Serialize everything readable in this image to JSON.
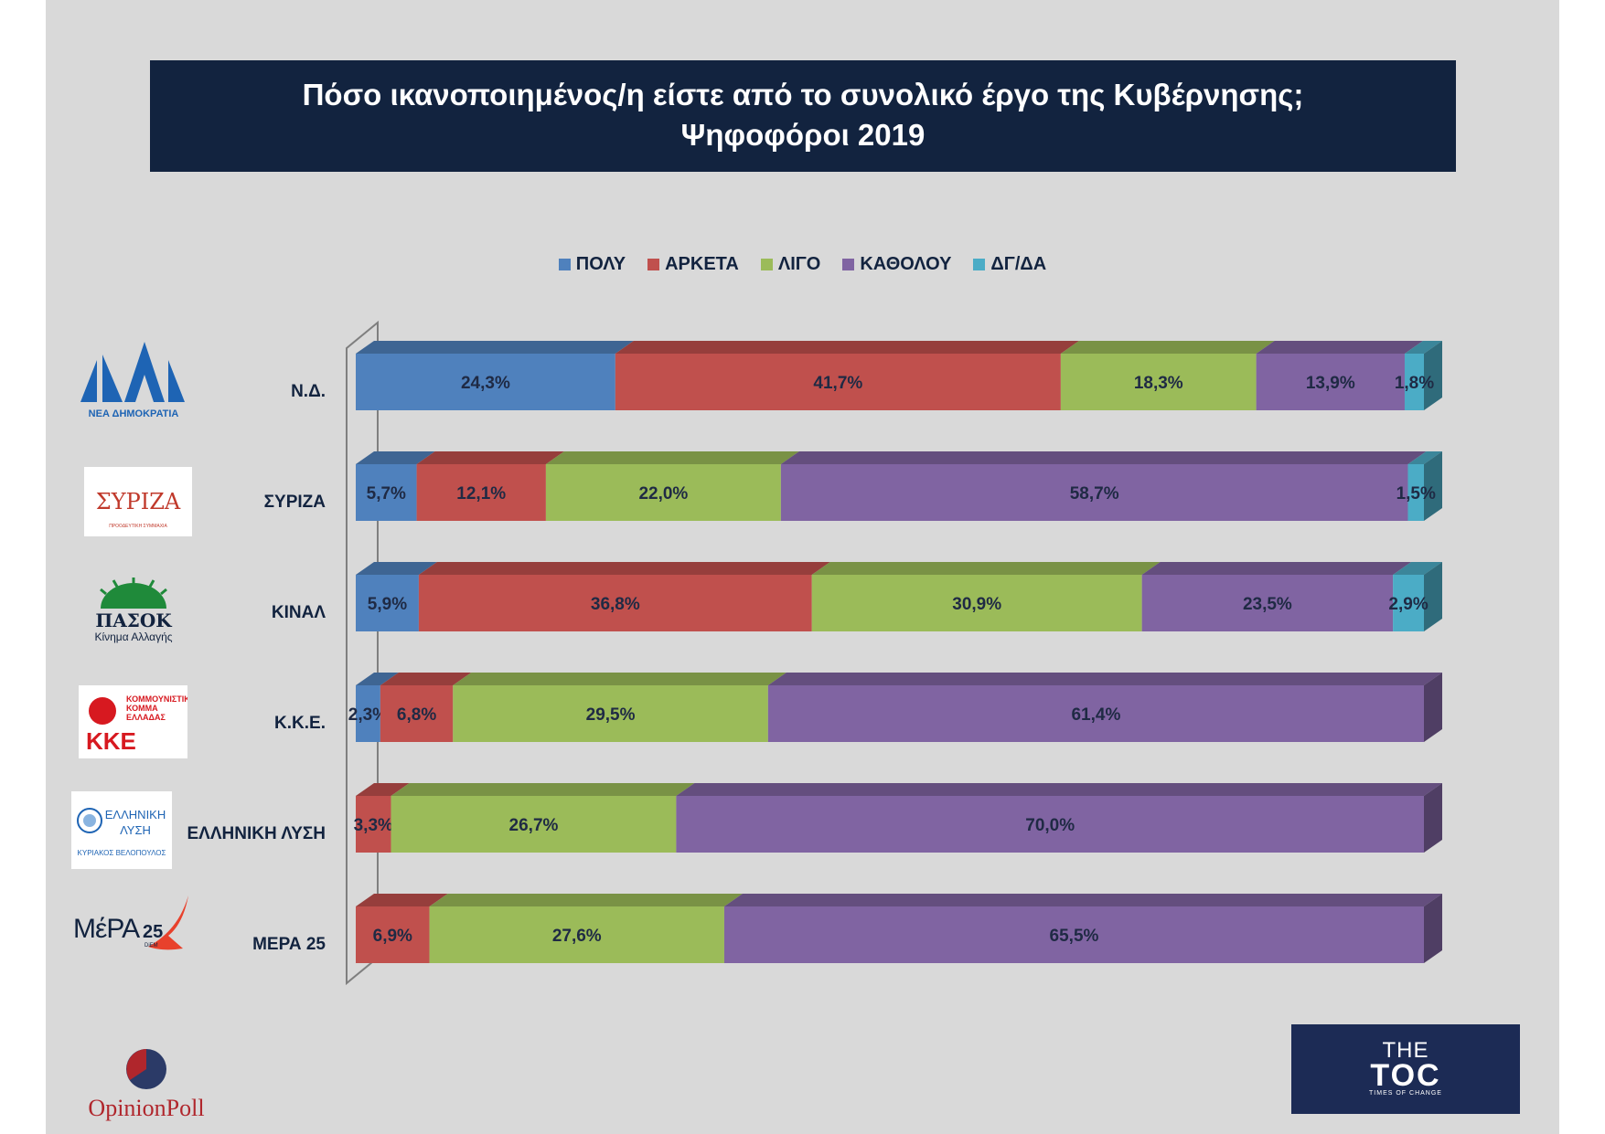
{
  "title": {
    "line1": "Πόσο ικανοποιημένος/η είστε από το συνολικό έργο της Κυβέρνησης;",
    "line2": "Ψηφοφόροι 2019"
  },
  "colors": {
    "ΠΟΛΥ": "#4f81bd",
    "ΑΡΚΕΤΑ": "#c0504d",
    "ΛΙΓΟ": "#9bbb59",
    "ΚΑΘΟΛΟΥ": "#8064a2",
    "ΔΓ/ΔΑ": "#4bacc6"
  },
  "chart_data": {
    "type": "bar",
    "orientation": "horizontal",
    "stacked": true,
    "legend_position": "top",
    "categories": [
      "Ν.Δ.",
      "ΣΥΡΙΖΑ",
      "ΚΙΝΑΛ",
      "Κ.Κ.Ε.",
      "ΕΛΛΗΝΙΚΗ ΛΥΣΗ",
      "ΜΕΡΑ 25"
    ],
    "series": [
      {
        "name": "ΠΟΛΥ",
        "values": [
          24.3,
          5.7,
          5.9,
          2.3,
          null,
          null
        ],
        "labels": [
          "24,3%",
          "5,7%",
          "5,9%",
          "2,3%",
          null,
          null
        ]
      },
      {
        "name": "ΑΡΚΕΤΑ",
        "values": [
          41.7,
          12.1,
          36.8,
          6.8,
          3.3,
          6.9
        ],
        "labels": [
          "41,7%",
          "12,1%",
          "36,8%",
          "6,8%",
          "3,3%",
          "6,9%"
        ]
      },
      {
        "name": "ΛΙΓΟ",
        "values": [
          18.3,
          22.0,
          30.9,
          29.5,
          26.7,
          27.6
        ],
        "labels": [
          "18,3%",
          "22,0%",
          "30,9%",
          "29,5%",
          "26,7%",
          "27,6%"
        ]
      },
      {
        "name": "ΚΑΘΟΛΟΥ",
        "values": [
          13.9,
          58.7,
          23.5,
          61.4,
          70.0,
          65.5
        ],
        "labels": [
          "13,9%",
          "58,7%",
          "23,5%",
          "61,4%",
          "70,0%",
          "65,5%"
        ]
      },
      {
        "name": "ΔΓ/ΔΑ",
        "values": [
          1.8,
          1.5,
          2.9,
          null,
          null,
          null
        ],
        "labels": [
          "1,8%",
          "1,5%",
          "2,9%",
          null,
          null,
          null
        ]
      }
    ]
  },
  "logos": {
    "nd": {
      "line1": "ΝΔ",
      "line2": "ΝΕΑ ΔΗΜΟΚΡΑΤΙΑ"
    },
    "syriza": {
      "main": "ΣΥΡΙΖΑ",
      "sub": "ΠΡΟΟΔΕΥΤΙΚΗ ΣΥΜΜΑΧΙΑ"
    },
    "pasok": {
      "main": "ΠΑΣΟΚ",
      "sub": "Κίνημα Αλλαγής"
    },
    "kke": {
      "main": "ΚΚΕ",
      "sub1": "ΚΟΜΜΟΥΝΙΣΤΙΚΟ",
      "sub2": "ΚΟΜΜΑ",
      "sub3": "ΕΛΛΑΔΑΣ"
    },
    "elliniki_lysi": {
      "line1": "ΕΛΛΗΝΙΚΗ",
      "line2": "ΛΥΣΗ",
      "line3": "ΚΥΡΙΑΚΟΣ ΒΕΛΟΠΟΥΛΟΣ"
    },
    "mera25": {
      "main": "ΜέΡΑ",
      "num": "25",
      "sub": "DiEM"
    }
  },
  "footer": {
    "opinion_poll": "OpinionPoll",
    "thetoc_the": "THE",
    "thetoc_toc": "TOC",
    "thetoc_sub": "TIMES OF CHANGE"
  }
}
